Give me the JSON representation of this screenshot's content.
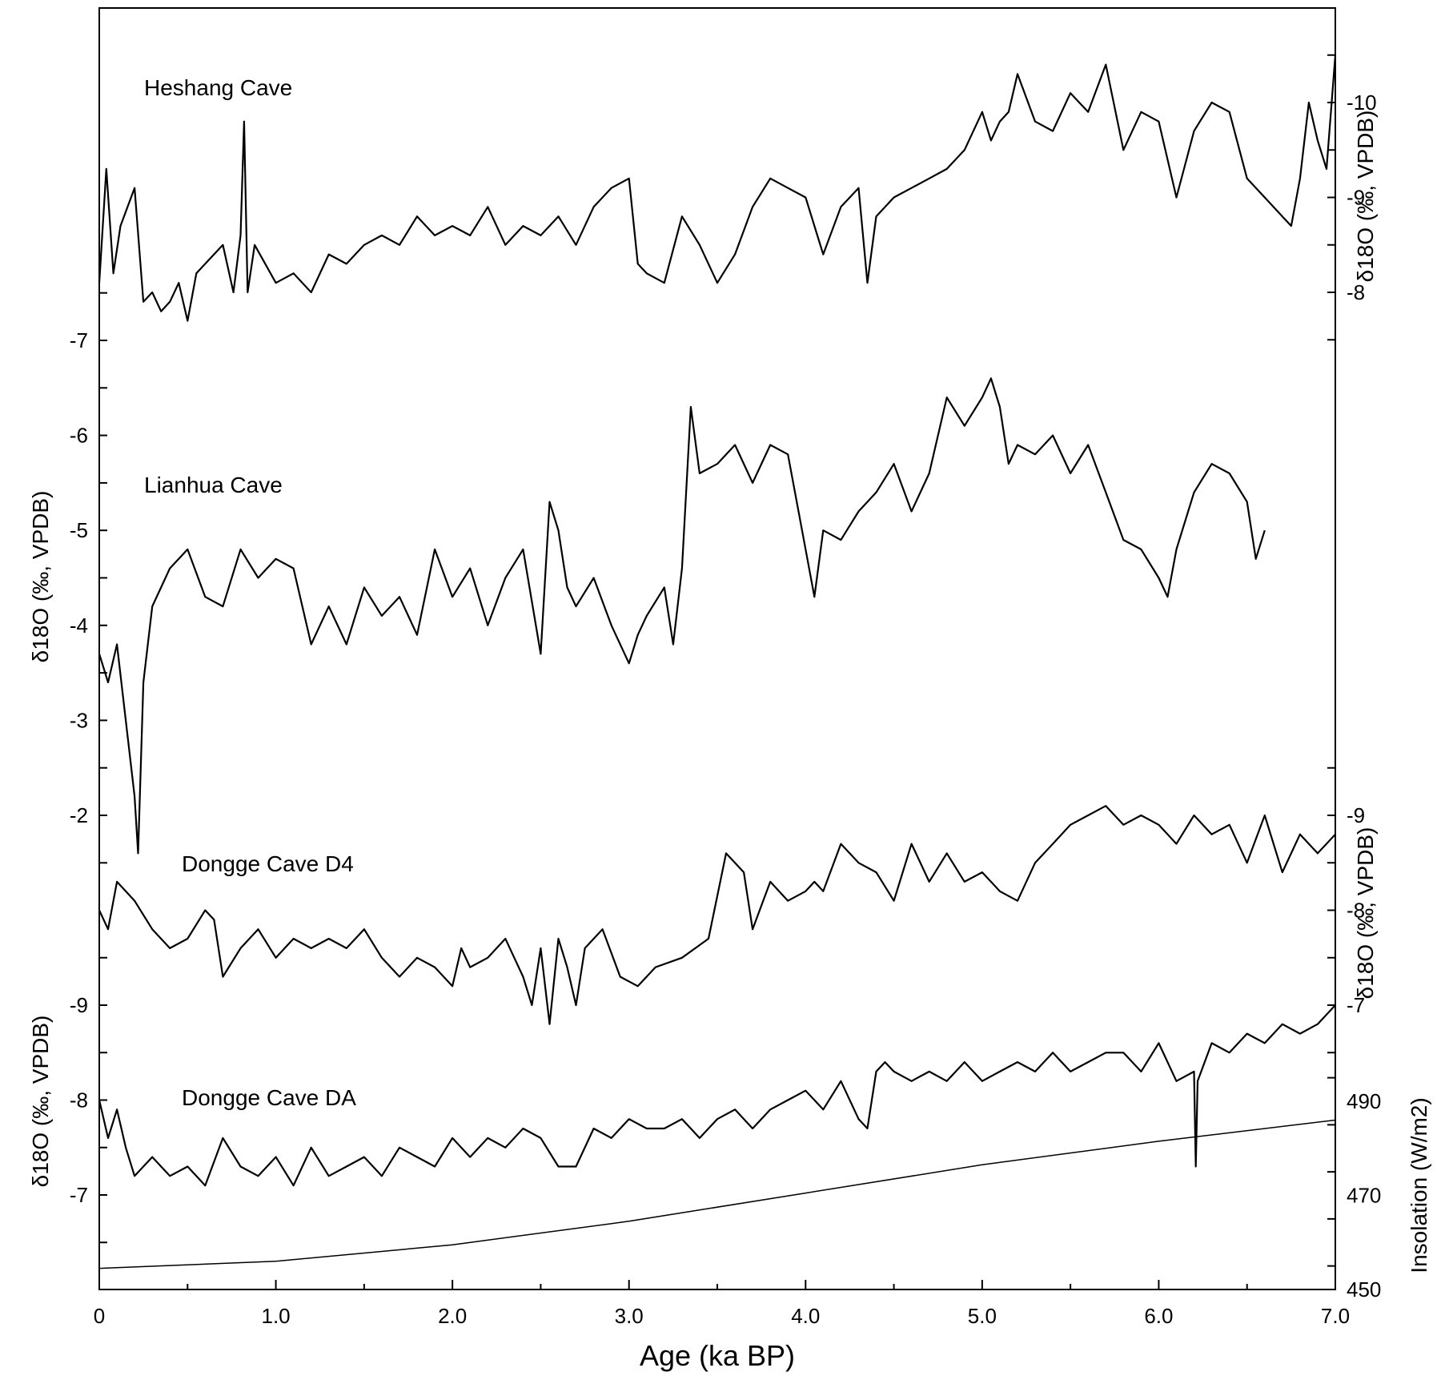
{
  "chart_data": {
    "type": "line",
    "xlabel": "Age (ka BP)",
    "xlim": [
      0,
      7.0
    ],
    "x_ticks": [
      "0",
      "1.0",
      "2.0",
      "3.0",
      "4.0",
      "5.0",
      "6.0",
      "7.0"
    ],
    "series": [
      {
        "name": "Heshang Cave",
        "axis": "right-top",
        "axis_label": "δ18O (‰, VPDB)",
        "ticks": [
          "-10",
          "-9",
          "-8"
        ],
        "x": [
          0,
          0.04,
          0.08,
          0.12,
          0.2,
          0.25,
          0.3,
          0.35,
          0.4,
          0.45,
          0.5,
          0.55,
          0.6,
          0.7,
          0.76,
          0.8,
          0.82,
          0.84,
          0.88,
          1.0,
          1.1,
          1.2,
          1.3,
          1.4,
          1.5,
          1.6,
          1.7,
          1.8,
          1.9,
          2.0,
          2.1,
          2.2,
          2.3,
          2.4,
          2.5,
          2.6,
          2.7,
          2.8,
          2.9,
          3.0,
          3.05,
          3.1,
          3.2,
          3.3,
          3.4,
          3.5,
          3.6,
          3.7,
          3.8,
          3.9,
          4.0,
          4.1,
          4.2,
          4.3,
          4.35,
          4.4,
          4.5,
          4.6,
          4.7,
          4.8,
          4.9,
          5.0,
          5.05,
          5.1,
          5.15,
          5.2,
          5.3,
          5.4,
          5.5,
          5.6,
          5.7,
          5.8,
          5.9,
          6.0,
          6.1,
          6.2,
          6.3,
          6.4,
          6.5,
          6.6,
          6.7,
          6.75,
          6.8,
          6.85,
          6.9,
          6.95,
          7.0
        ],
        "values": [
          -8.1,
          -9.3,
          -8.2,
          -8.7,
          -9.1,
          -7.9,
          -8.0,
          -7.8,
          -7.9,
          -8.1,
          -7.7,
          -8.2,
          -8.3,
          -8.5,
          -8.0,
          -8.6,
          -9.8,
          -8.0,
          -8.5,
          -8.1,
          -8.2,
          -8.0,
          -8.4,
          -8.3,
          -8.5,
          -8.6,
          -8.5,
          -8.8,
          -8.6,
          -8.7,
          -8.6,
          -8.9,
          -8.5,
          -8.7,
          -8.6,
          -8.8,
          -8.5,
          -8.9,
          -9.1,
          -9.2,
          -8.3,
          -8.2,
          -8.1,
          -8.8,
          -8.5,
          -8.1,
          -8.4,
          -8.9,
          -9.2,
          -9.1,
          -9.0,
          -8.4,
          -8.9,
          -9.1,
          -8.1,
          -8.8,
          -9.0,
          -9.1,
          -9.2,
          -9.3,
          -9.5,
          -9.9,
          -9.6,
          -9.8,
          -9.9,
          -10.3,
          -9.8,
          -9.7,
          -10.1,
          -9.9,
          -10.4,
          -9.5,
          -9.9,
          -9.8,
          -9.0,
          -9.7,
          -10.0,
          -9.9,
          -9.2,
          -9.0,
          -8.8,
          -8.7,
          -9.2,
          -10.0,
          -9.6,
          -9.3,
          -10.5
        ]
      },
      {
        "name": "Lianhua Cave",
        "axis": "left-top",
        "axis_label": "δ18O (‰, VPDB)",
        "ticks": [
          "-7",
          "-6",
          "-5",
          "-4",
          "-3",
          "-2"
        ],
        "x": [
          0,
          0.05,
          0.1,
          0.15,
          0.2,
          0.22,
          0.25,
          0.3,
          0.35,
          0.4,
          0.5,
          0.6,
          0.7,
          0.8,
          0.9,
          1.0,
          1.1,
          1.2,
          1.3,
          1.4,
          1.5,
          1.6,
          1.7,
          1.8,
          1.9,
          2.0,
          2.1,
          2.2,
          2.3,
          2.4,
          2.5,
          2.55,
          2.6,
          2.65,
          2.7,
          2.8,
          2.9,
          3.0,
          3.05,
          3.1,
          3.2,
          3.25,
          3.3,
          3.35,
          3.4,
          3.5,
          3.6,
          3.7,
          3.8,
          3.9,
          4.0,
          4.05,
          4.1,
          4.2,
          4.3,
          4.4,
          4.5,
          4.6,
          4.7,
          4.8,
          4.9,
          5.0,
          5.05,
          5.1,
          5.15,
          5.2,
          5.3,
          5.4,
          5.5,
          5.6,
          5.7,
          5.8,
          5.9,
          6.0,
          6.05,
          6.1,
          6.2,
          6.3,
          6.4,
          6.5,
          6.55,
          6.6
        ],
        "values": [
          -3.7,
          -3.4,
          -3.8,
          -3.0,
          -2.2,
          -1.6,
          -3.4,
          -4.2,
          -4.4,
          -4.6,
          -4.8,
          -4.3,
          -4.2,
          -4.8,
          -4.5,
          -4.7,
          -4.6,
          -3.8,
          -4.2,
          -3.8,
          -4.4,
          -4.1,
          -4.3,
          -3.9,
          -4.8,
          -4.3,
          -4.6,
          -4.0,
          -4.5,
          -4.8,
          -3.7,
          -5.3,
          -5.0,
          -4.4,
          -4.2,
          -4.5,
          -4.0,
          -3.6,
          -3.9,
          -4.1,
          -4.4,
          -3.8,
          -4.6,
          -6.3,
          -5.6,
          -5.7,
          -5.9,
          -5.5,
          -5.9,
          -5.8,
          -4.8,
          -4.3,
          -5.0,
          -4.9,
          -5.2,
          -5.4,
          -5.7,
          -5.2,
          -5.6,
          -6.4,
          -6.1,
          -6.4,
          -6.6,
          -6.3,
          -5.7,
          -5.9,
          -5.8,
          -6.0,
          -5.6,
          -5.9,
          -5.4,
          -4.9,
          -4.8,
          -4.5,
          -4.3,
          -4.8,
          -5.4,
          -5.7,
          -5.6,
          -5.3,
          -4.7,
          -5.0
        ]
      },
      {
        "name": "Dongge Cave D4",
        "axis": "right-middle",
        "axis_label": "δ18O (‰, VPDB)",
        "ticks": [
          "-9",
          "-8",
          "-7"
        ],
        "x": [
          0,
          0.05,
          0.1,
          0.15,
          0.2,
          0.3,
          0.4,
          0.5,
          0.6,
          0.65,
          0.7,
          0.8,
          0.9,
          1.0,
          1.1,
          1.2,
          1.3,
          1.4,
          1.5,
          1.6,
          1.7,
          1.8,
          1.9,
          2.0,
          2.05,
          2.1,
          2.2,
          2.3,
          2.4,
          2.45,
          2.5,
          2.55,
          2.6,
          2.65,
          2.7,
          2.75,
          2.85,
          2.95,
          3.05,
          3.15,
          3.3,
          3.45,
          3.55,
          3.65,
          3.7,
          3.8,
          3.9,
          4.0,
          4.05,
          4.1,
          4.2,
          4.3,
          4.4,
          4.5,
          4.6,
          4.7,
          4.8,
          4.9,
          5.0,
          5.1,
          5.2,
          5.3,
          5.4,
          5.5,
          5.6,
          5.7,
          5.8,
          5.9,
          6.0,
          6.1,
          6.2,
          6.3,
          6.4,
          6.5,
          6.6,
          6.7,
          6.8,
          6.9,
          7.0
        ],
        "values": [
          -8.0,
          -7.8,
          -8.3,
          -8.2,
          -8.1,
          -7.8,
          -7.6,
          -7.7,
          -8.0,
          -7.9,
          -7.3,
          -7.6,
          -7.8,
          -7.5,
          -7.7,
          -7.6,
          -7.7,
          -7.6,
          -7.8,
          -7.5,
          -7.3,
          -7.5,
          -7.4,
          -7.2,
          -7.6,
          -7.4,
          -7.5,
          -7.7,
          -7.3,
          -7.0,
          -7.6,
          -6.8,
          -7.7,
          -7.4,
          -7.0,
          -7.6,
          -7.8,
          -7.3,
          -7.2,
          -7.4,
          -7.5,
          -7.7,
          -8.6,
          -8.4,
          -7.8,
          -8.3,
          -8.1,
          -8.2,
          -8.3,
          -8.2,
          -8.7,
          -8.5,
          -8.4,
          -8.1,
          -8.7,
          -8.3,
          -8.6,
          -8.3,
          -8.4,
          -8.2,
          -8.1,
          -8.5,
          -8.7,
          -8.9,
          -9.0,
          -9.1,
          -8.9,
          -9.0,
          -8.9,
          -8.7,
          -9.0,
          -8.8,
          -8.9,
          -8.5,
          -9.0,
          -8.4,
          -8.8,
          -8.6,
          -8.8
        ]
      },
      {
        "name": "Dongge Cave DA",
        "axis": "left-bottom",
        "axis_label": "δ18O (‰, VPDB)",
        "ticks": [
          "-9",
          "-8",
          "-7"
        ],
        "x": [
          0,
          0.05,
          0.1,
          0.15,
          0.2,
          0.3,
          0.4,
          0.5,
          0.6,
          0.7,
          0.8,
          0.9,
          1.0,
          1.1,
          1.2,
          1.3,
          1.4,
          1.5,
          1.6,
          1.7,
          1.8,
          1.9,
          2.0,
          2.1,
          2.2,
          2.3,
          2.4,
          2.5,
          2.6,
          2.7,
          2.8,
          2.9,
          3.0,
          3.1,
          3.2,
          3.3,
          3.4,
          3.5,
          3.6,
          3.7,
          3.8,
          3.9,
          4.0,
          4.1,
          4.2,
          4.3,
          4.35,
          4.4,
          4.45,
          4.5,
          4.6,
          4.7,
          4.8,
          4.9,
          5.0,
          5.1,
          5.2,
          5.3,
          5.4,
          5.5,
          5.6,
          5.7,
          5.8,
          5.9,
          6.0,
          6.1,
          6.2,
          6.21,
          6.22,
          6.3,
          6.4,
          6.5,
          6.6,
          6.7,
          6.8,
          6.9,
          7.0
        ],
        "values": [
          -8.0,
          -7.6,
          -7.9,
          -7.5,
          -7.2,
          -7.4,
          -7.2,
          -7.3,
          -7.1,
          -7.6,
          -7.3,
          -7.2,
          -7.4,
          -7.1,
          -7.5,
          -7.2,
          -7.3,
          -7.4,
          -7.2,
          -7.5,
          -7.4,
          -7.3,
          -7.6,
          -7.4,
          -7.6,
          -7.5,
          -7.7,
          -7.6,
          -7.3,
          -7.3,
          -7.7,
          -7.6,
          -7.8,
          -7.7,
          -7.7,
          -7.8,
          -7.6,
          -7.8,
          -7.9,
          -7.7,
          -7.9,
          -8.0,
          -8.1,
          -7.9,
          -8.2,
          -7.8,
          -7.7,
          -8.3,
          -8.4,
          -8.3,
          -8.2,
          -8.3,
          -8.2,
          -8.4,
          -8.2,
          -8.3,
          -8.4,
          -8.3,
          -8.5,
          -8.3,
          -8.4,
          -8.5,
          -8.5,
          -8.3,
          -8.6,
          -8.2,
          -8.3,
          -7.3,
          -8.2,
          -8.6,
          -8.5,
          -8.7,
          -8.6,
          -8.8,
          -8.7,
          -8.8,
          -9.0
        ]
      },
      {
        "name": "Insolation",
        "axis": "right-bottom",
        "axis_label": "Insolation (W/m2)",
        "ticks": [
          "450",
          "470",
          "490"
        ],
        "x": [
          0,
          1.0,
          2.0,
          3.0,
          4.0,
          5.0,
          6.0,
          7.0
        ],
        "values": [
          454.5,
          456.0,
          459.5,
          464.5,
          470.5,
          476.5,
          481.5,
          486.0
        ]
      }
    ]
  }
}
